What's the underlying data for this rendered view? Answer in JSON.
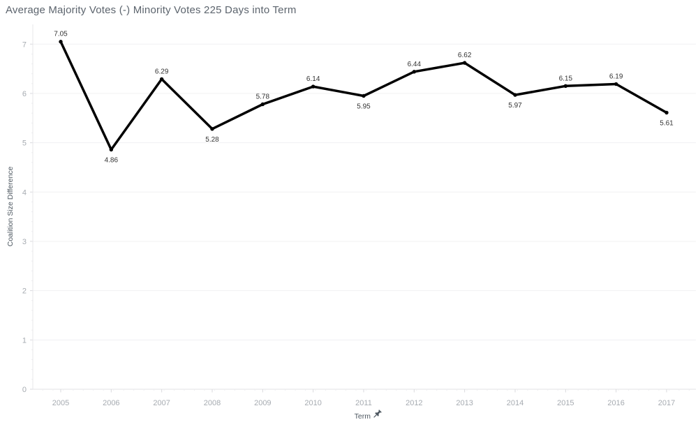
{
  "title": "Average Majority Votes (-) Minority Votes 225 Days into Term",
  "chart_data": {
    "type": "line",
    "x": [
      2005,
      2006,
      2007,
      2008,
      2009,
      2010,
      2011,
      2012,
      2013,
      2014,
      2015,
      2016,
      2017
    ],
    "values": [
      7.05,
      4.86,
      6.29,
      5.28,
      5.78,
      6.14,
      5.95,
      6.44,
      6.62,
      5.97,
      6.15,
      6.19,
      5.61
    ],
    "value_label_positions": [
      "above",
      "below",
      "above",
      "below",
      "above",
      "above",
      "below",
      "above",
      "above",
      "below",
      "above",
      "above",
      "below"
    ],
    "title": "Average Majority Votes (-) Minority Votes 225 Days into Term",
    "xlabel": "Term",
    "ylabel": "Coalition Size Difference",
    "ylim": [
      0,
      7.4
    ],
    "yticks": [
      0,
      1,
      2,
      3,
      4,
      5,
      6,
      7
    ],
    "grid": "horizontal-on",
    "legend": "none",
    "markers": true
  },
  "icons": {
    "pin": "pin-icon"
  },
  "colors": {
    "line": "#000000",
    "marker": "#000000",
    "grid": "#f0f0f2",
    "zero_line": "#e3e3e6",
    "axis_line": "#e7e7ea",
    "tick": "#d9d9dd",
    "minor_tick": "#ededf0",
    "tick_label": "#a6abb1",
    "axis_title": "#4d5760",
    "value_label": "#333333",
    "title": "#5c646d",
    "background": "#ffffff",
    "pin": "#4d5760"
  }
}
